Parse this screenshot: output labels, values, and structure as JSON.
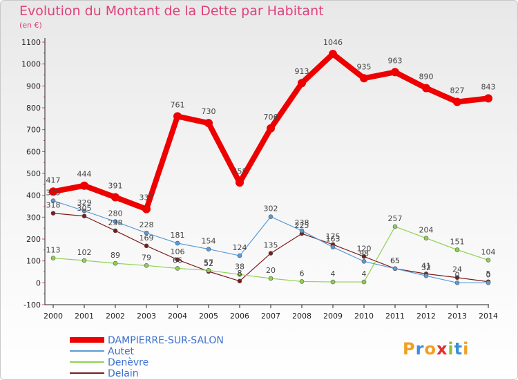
{
  "page": {
    "title": "Evolution du Montant de la Dette par Habitant",
    "unit": "(en €)",
    "brand": "Proxiti"
  },
  "colors": {
    "title": "#e0407a",
    "axis": "#222222",
    "grid": "#dddddd",
    "legend_text": "#3a6fcf"
  },
  "chart_data": {
    "type": "line",
    "title": "Evolution du Montant de la Dette par Habitant",
    "subtitle": "(en €)",
    "xlabel": "",
    "ylabel": "",
    "x": [
      "2000",
      "2001",
      "2002",
      "2003",
      "2004",
      "2005",
      "2006",
      "2007",
      "2008",
      "2009",
      "2010",
      "2011",
      "2012",
      "2013",
      "2014"
    ],
    "ylim": [
      -100,
      1100
    ],
    "yticks": [
      -100,
      0,
      100,
      200,
      300,
      400,
      500,
      600,
      700,
      800,
      900,
      1000,
      1100
    ],
    "grid": false,
    "legend": "bottom-left",
    "series": [
      {
        "name": "DAMPIERRE-SUR-SALON",
        "color": "#ee0000",
        "width": 8,
        "values": [
          417,
          444,
          391,
          337,
          761,
          730,
          458,
          706,
          913,
          1046,
          935,
          963,
          890,
          827,
          843
        ]
      },
      {
        "name": "Autet",
        "color": "#5b9bd5",
        "width": 1.2,
        "values": [
          375,
          329,
          280,
          228,
          181,
          154,
          124,
          302,
          238,
          163,
          98,
          65,
          32,
          0,
          0
        ]
      },
      {
        "name": "Denèvre",
        "color": "#8fd14f",
        "width": 1.2,
        "values": [
          113,
          102,
          89,
          79,
          66,
          57,
          38,
          20,
          6,
          4,
          4,
          257,
          204,
          151,
          104
        ]
      },
      {
        "name": "Delain",
        "color": "#7a1c1c",
        "width": 1.2,
        "values": [
          318,
          305,
          238,
          169,
          106,
          52,
          8,
          135,
          225,
          175,
          120,
          65,
          41,
          24,
          5
        ]
      }
    ]
  }
}
